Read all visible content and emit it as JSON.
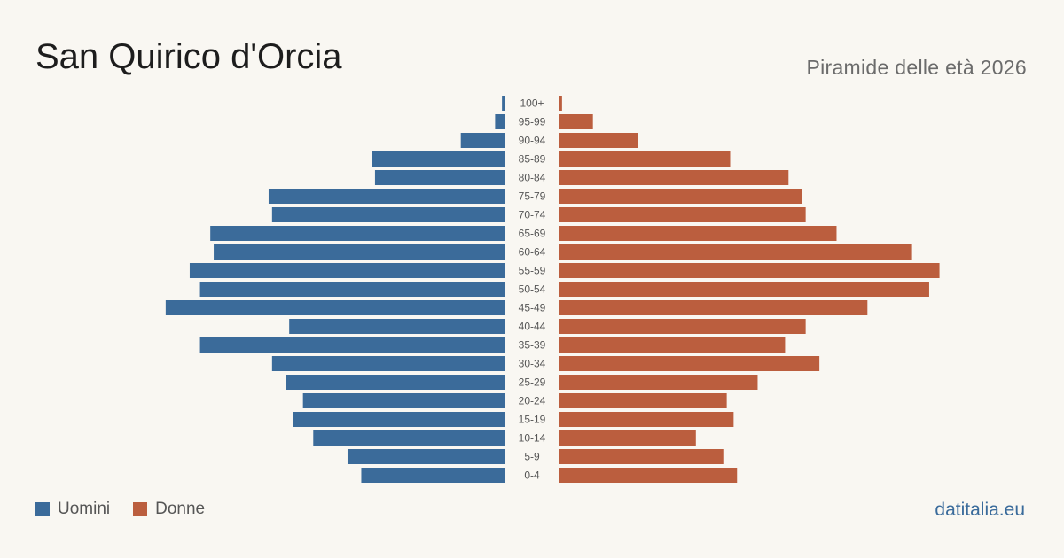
{
  "title": "San Quirico d'Orcia",
  "subtitle": "Piramide delle età 2026",
  "legend": {
    "men_label": "Uomini",
    "women_label": "Donne"
  },
  "source": "datitalia.eu",
  "colors": {
    "men": "#3b6b9a",
    "women": "#bb5e3e",
    "background": "#f9f7f2"
  },
  "chart_data": {
    "type": "bar",
    "orientation": "horizontal-pyramid",
    "categories": [
      "100+",
      "95-99",
      "90-94",
      "85-89",
      "80-84",
      "75-79",
      "70-74",
      "65-69",
      "60-64",
      "55-59",
      "50-54",
      "45-49",
      "40-44",
      "35-39",
      "30-34",
      "25-29",
      "20-24",
      "15-19",
      "10-14",
      "5-9",
      "0-4"
    ],
    "series": [
      {
        "name": "Uomini",
        "values": [
          1,
          3,
          13,
          39,
          38,
          69,
          68,
          86,
          85,
          92,
          89,
          99,
          63,
          89,
          68,
          64,
          59,
          62,
          56,
          46,
          42
        ]
      },
      {
        "name": "Donne",
        "values": [
          1,
          10,
          23,
          50,
          67,
          71,
          72,
          81,
          103,
          111,
          108,
          90,
          72,
          66,
          76,
          58,
          49,
          51,
          40,
          48,
          52
        ]
      }
    ],
    "xlabel": "",
    "ylabel": "",
    "grid": false,
    "legend_position": "bottom-left"
  }
}
